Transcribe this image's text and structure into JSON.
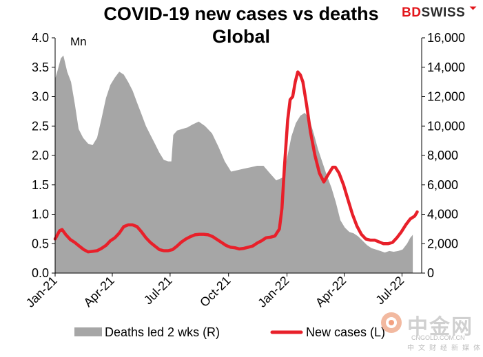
{
  "title_line1": "COVID-19  new cases  vs deaths",
  "title_line2": "Global",
  "logo": {
    "bd": "BD",
    "swiss": "SWISS"
  },
  "watermark": {
    "name": "中金网",
    "url": "CNGOLD.COM.CN",
    "sub": "中文财经新媒体"
  },
  "colors": {
    "deaths": "#a6a6a6",
    "cases": "#e8202a",
    "logo_red": "#e3161b"
  },
  "chart_data": {
    "type": "line",
    "title": "COVID-19  new cases  vs deaths Global",
    "left_axis": {
      "unit_label": "Mn",
      "ylim": [
        0,
        4.0
      ],
      "ticks": [
        "0.0",
        "0.5",
        "1.0",
        "1.5",
        "2.0",
        "2.5",
        "3.0",
        "3.5",
        "4.0"
      ]
    },
    "right_axis": {
      "ylim": [
        0,
        16000
      ],
      "ticks": [
        "0",
        "2,000",
        "4,000",
        "6,000",
        "8,000",
        "10,000",
        "12,000",
        "14,000",
        "16,000"
      ]
    },
    "x_ticks": [
      "Jan-21",
      "Apr-21",
      "Jul-21",
      "Oct-21",
      "Jan-22",
      "Apr-22",
      "Jul-22"
    ],
    "grid": false,
    "legend_position": "bottom",
    "series": [
      {
        "name": "Deaths led 2 wks (R)",
        "type": "area",
        "axis": "right",
        "color": "#a6a6a6",
        "points": [
          [
            "2021-01-01",
            13200
          ],
          [
            "2021-01-05",
            13800
          ],
          [
            "2021-01-10",
            14600
          ],
          [
            "2021-01-14",
            14800
          ],
          [
            "2021-01-20",
            13700
          ],
          [
            "2021-01-26",
            13000
          ],
          [
            "2021-02-01",
            11500
          ],
          [
            "2021-02-07",
            9800
          ],
          [
            "2021-02-14",
            9200
          ],
          [
            "2021-02-22",
            8800
          ],
          [
            "2021-03-01",
            8700
          ],
          [
            "2021-03-08",
            9200
          ],
          [
            "2021-03-15",
            10500
          ],
          [
            "2021-03-22",
            11900
          ],
          [
            "2021-03-29",
            12800
          ],
          [
            "2021-04-05",
            13300
          ],
          [
            "2021-04-12",
            13700
          ],
          [
            "2021-04-19",
            13500
          ],
          [
            "2021-04-26",
            13000
          ],
          [
            "2021-05-03",
            12400
          ],
          [
            "2021-05-10",
            11600
          ],
          [
            "2021-05-17",
            10800
          ],
          [
            "2021-05-24",
            10000
          ],
          [
            "2021-05-31",
            9400
          ],
          [
            "2021-06-07",
            8800
          ],
          [
            "2021-06-14",
            8200
          ],
          [
            "2021-06-21",
            7700
          ],
          [
            "2021-06-28",
            7600
          ],
          [
            "2021-07-03",
            7600
          ],
          [
            "2021-07-06",
            9400
          ],
          [
            "2021-07-12",
            9700
          ],
          [
            "2021-07-20",
            9800
          ],
          [
            "2021-07-28",
            9900
          ],
          [
            "2021-08-05",
            10100
          ],
          [
            "2021-08-15",
            10300
          ],
          [
            "2021-08-25",
            10000
          ],
          [
            "2021-09-05",
            9500
          ],
          [
            "2021-09-15",
            8600
          ],
          [
            "2021-09-25",
            7600
          ],
          [
            "2021-10-05",
            6900
          ],
          [
            "2021-10-15",
            7000
          ],
          [
            "2021-10-25",
            7100
          ],
          [
            "2021-11-05",
            7200
          ],
          [
            "2021-11-15",
            7300
          ],
          [
            "2021-11-25",
            7300
          ],
          [
            "2021-12-05",
            6800
          ],
          [
            "2021-12-15",
            6300
          ],
          [
            "2021-12-25",
            6500
          ],
          [
            "2022-01-01",
            7800
          ],
          [
            "2022-01-08",
            9300
          ],
          [
            "2022-01-15",
            10200
          ],
          [
            "2022-01-22",
            10700
          ],
          [
            "2022-01-29",
            10900
          ],
          [
            "2022-02-05",
            10500
          ],
          [
            "2022-02-12",
            9500
          ],
          [
            "2022-02-19",
            8400
          ],
          [
            "2022-02-26",
            7500
          ],
          [
            "2022-03-05",
            6600
          ],
          [
            "2022-03-12",
            5800
          ],
          [
            "2022-03-19",
            4800
          ],
          [
            "2022-03-26",
            3600
          ],
          [
            "2022-04-02",
            3100
          ],
          [
            "2022-04-09",
            2800
          ],
          [
            "2022-04-16",
            2700
          ],
          [
            "2022-04-23",
            2500
          ],
          [
            "2022-04-30",
            2200
          ],
          [
            "2022-05-07",
            1900
          ],
          [
            "2022-05-14",
            1700
          ],
          [
            "2022-05-21",
            1600
          ],
          [
            "2022-05-28",
            1500
          ],
          [
            "2022-06-04",
            1400
          ],
          [
            "2022-06-11",
            1500
          ],
          [
            "2022-06-18",
            1450
          ],
          [
            "2022-06-25",
            1500
          ],
          [
            "2022-07-02",
            1600
          ],
          [
            "2022-07-09",
            2000
          ],
          [
            "2022-07-14",
            2400
          ],
          [
            "2022-07-18",
            2600
          ]
        ]
      },
      {
        "name": "New cases (L)",
        "type": "line",
        "axis": "left",
        "color": "#e8202a",
        "points": [
          [
            "2021-01-01",
            0.58
          ],
          [
            "2021-01-08",
            0.72
          ],
          [
            "2021-01-12",
            0.74
          ],
          [
            "2021-01-18",
            0.65
          ],
          [
            "2021-01-25",
            0.57
          ],
          [
            "2021-02-01",
            0.52
          ],
          [
            "2021-02-08",
            0.46
          ],
          [
            "2021-02-15",
            0.4
          ],
          [
            "2021-02-22",
            0.36
          ],
          [
            "2021-03-01",
            0.37
          ],
          [
            "2021-03-08",
            0.38
          ],
          [
            "2021-03-15",
            0.42
          ],
          [
            "2021-03-22",
            0.47
          ],
          [
            "2021-03-29",
            0.55
          ],
          [
            "2021-04-05",
            0.6
          ],
          [
            "2021-04-12",
            0.68
          ],
          [
            "2021-04-19",
            0.79
          ],
          [
            "2021-04-26",
            0.82
          ],
          [
            "2021-05-03",
            0.82
          ],
          [
            "2021-05-10",
            0.79
          ],
          [
            "2021-05-17",
            0.7
          ],
          [
            "2021-05-24",
            0.6
          ],
          [
            "2021-05-31",
            0.52
          ],
          [
            "2021-06-07",
            0.46
          ],
          [
            "2021-06-14",
            0.4
          ],
          [
            "2021-06-21",
            0.38
          ],
          [
            "2021-06-28",
            0.38
          ],
          [
            "2021-07-05",
            0.4
          ],
          [
            "2021-07-12",
            0.46
          ],
          [
            "2021-07-19",
            0.53
          ],
          [
            "2021-07-26",
            0.58
          ],
          [
            "2021-08-02",
            0.62
          ],
          [
            "2021-08-09",
            0.65
          ],
          [
            "2021-08-16",
            0.66
          ],
          [
            "2021-08-23",
            0.66
          ],
          [
            "2021-08-30",
            0.65
          ],
          [
            "2021-09-06",
            0.62
          ],
          [
            "2021-09-13",
            0.57
          ],
          [
            "2021-09-20",
            0.52
          ],
          [
            "2021-09-27",
            0.47
          ],
          [
            "2021-10-04",
            0.44
          ],
          [
            "2021-10-11",
            0.43
          ],
          [
            "2021-10-18",
            0.41
          ],
          [
            "2021-10-25",
            0.42
          ],
          [
            "2021-11-01",
            0.44
          ],
          [
            "2021-11-08",
            0.46
          ],
          [
            "2021-11-15",
            0.51
          ],
          [
            "2021-11-22",
            0.55
          ],
          [
            "2021-11-29",
            0.6
          ],
          [
            "2021-12-06",
            0.61
          ],
          [
            "2021-12-13",
            0.63
          ],
          [
            "2021-12-20",
            0.75
          ],
          [
            "2021-12-24",
            1.1
          ],
          [
            "2021-12-28",
            1.8
          ],
          [
            "2022-01-02",
            2.6
          ],
          [
            "2022-01-06",
            2.95
          ],
          [
            "2022-01-10",
            3.0
          ],
          [
            "2022-01-14",
            3.25
          ],
          [
            "2022-01-18",
            3.42
          ],
          [
            "2022-01-22",
            3.37
          ],
          [
            "2022-01-26",
            3.25
          ],
          [
            "2022-02-01",
            2.85
          ],
          [
            "2022-02-07",
            2.4
          ],
          [
            "2022-02-14",
            2.0
          ],
          [
            "2022-02-21",
            1.7
          ],
          [
            "2022-02-28",
            1.55
          ],
          [
            "2022-03-07",
            1.68
          ],
          [
            "2022-03-14",
            1.8
          ],
          [
            "2022-03-18",
            1.8
          ],
          [
            "2022-03-24",
            1.7
          ],
          [
            "2022-03-31",
            1.5
          ],
          [
            "2022-04-07",
            1.25
          ],
          [
            "2022-04-14",
            1.0
          ],
          [
            "2022-04-21",
            0.8
          ],
          [
            "2022-04-28",
            0.66
          ],
          [
            "2022-05-05",
            0.58
          ],
          [
            "2022-05-12",
            0.56
          ],
          [
            "2022-05-19",
            0.56
          ],
          [
            "2022-05-26",
            0.53
          ],
          [
            "2022-06-02",
            0.5
          ],
          [
            "2022-06-09",
            0.5
          ],
          [
            "2022-06-16",
            0.52
          ],
          [
            "2022-06-23",
            0.6
          ],
          [
            "2022-06-30",
            0.7
          ],
          [
            "2022-07-07",
            0.82
          ],
          [
            "2022-07-14",
            0.92
          ],
          [
            "2022-07-21",
            0.97
          ],
          [
            "2022-07-25",
            1.04
          ]
        ]
      }
    ]
  }
}
